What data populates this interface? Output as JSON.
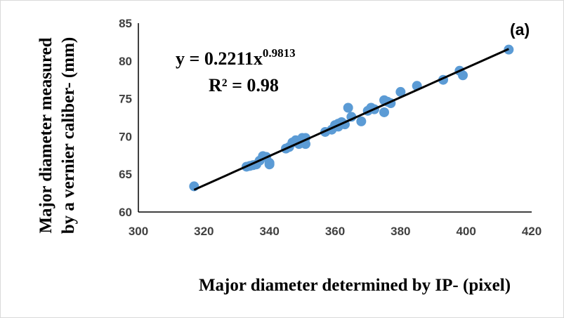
{
  "chart_data": {
    "type": "scatter",
    "title": "",
    "panel_label": "(a)",
    "xlabel": "Major diameter determined by IP- (pixel)",
    "ylabel_line1": "Major diameter measured",
    "ylabel_line2": "by a vernier caliber- (mm)",
    "xlim": [
      300,
      420
    ],
    "ylim": [
      60,
      85
    ],
    "x_ticks": [
      300,
      320,
      340,
      360,
      380,
      400,
      420
    ],
    "y_ticks": [
      60,
      65,
      70,
      75,
      80,
      85
    ],
    "grid": false,
    "legend": "none",
    "marker_color": "#5B9BD5",
    "trendline_color": "#000000",
    "trendline": {
      "type": "power",
      "coefficient": 0.2211,
      "exponent": 0.9813,
      "x_range": [
        317,
        413
      ],
      "equation_main": "y = 0.2211x",
      "equation_exponent": "0.9813",
      "r_squared_text": "R² = 0.98"
    },
    "points": [
      [
        317,
        63.4
      ],
      [
        333,
        66.0
      ],
      [
        334,
        66.1
      ],
      [
        335,
        66.2
      ],
      [
        336,
        66.3
      ],
      [
        337,
        66.8
      ],
      [
        338,
        67.4
      ],
      [
        339,
        67.3
      ],
      [
        340,
        66.5
      ],
      [
        340,
        66.3
      ],
      [
        345,
        68.4
      ],
      [
        346,
        68.6
      ],
      [
        347,
        69.2
      ],
      [
        348,
        69.5
      ],
      [
        349,
        69.0
      ],
      [
        350,
        69.8
      ],
      [
        350,
        69.3
      ],
      [
        351,
        69.8
      ],
      [
        351,
        69.0
      ],
      [
        357,
        70.6
      ],
      [
        359,
        70.9
      ],
      [
        360,
        71.5
      ],
      [
        361,
        71.3
      ],
      [
        361,
        71.7
      ],
      [
        362,
        71.9
      ],
      [
        363,
        71.6
      ],
      [
        364,
        73.8
      ],
      [
        365,
        72.6
      ],
      [
        368,
        72.0
      ],
      [
        370,
        73.4
      ],
      [
        371,
        73.8
      ],
      [
        372,
        73.6
      ],
      [
        375,
        74.8
      ],
      [
        375,
        73.2
      ],
      [
        376,
        74.6
      ],
      [
        377,
        74.4
      ],
      [
        380,
        75.9
      ],
      [
        385,
        76.7
      ],
      [
        393,
        77.5
      ],
      [
        398,
        78.7
      ],
      [
        399,
        78.1
      ],
      [
        413,
        81.5
      ]
    ]
  }
}
